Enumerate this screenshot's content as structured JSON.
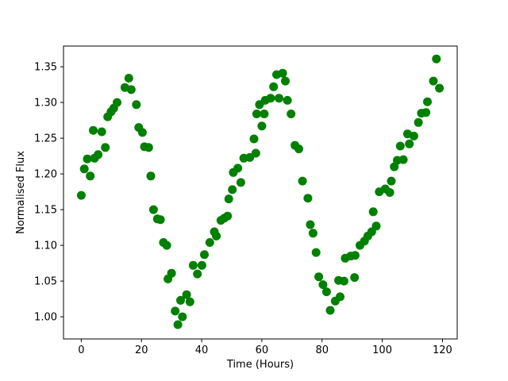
{
  "figure": {
    "background": "#ffffff",
    "spine_color": "#000000",
    "text_color": "#000000"
  },
  "chart_data": {
    "type": "scatter",
    "title": "",
    "xlabel": "Time (Hours)",
    "ylabel": "Normalised Flux",
    "xlim": [
      -5.9,
      124.9
    ],
    "ylim": [
      0.969,
      1.379
    ],
    "grid": false,
    "legend": null,
    "marker": {
      "color": "#008000",
      "radius": 5.5
    },
    "xticks": {
      "values": [
        0,
        20,
        40,
        60,
        80,
        100,
        120
      ],
      "labels": [
        "0",
        "20",
        "40",
        "60",
        "80",
        "100",
        "120"
      ]
    },
    "yticks": {
      "values": [
        1.0,
        1.05,
        1.1,
        1.15,
        1.2,
        1.25,
        1.3,
        1.35
      ],
      "labels": [
        "1.00",
        "1.05",
        "1.10",
        "1.15",
        "1.20",
        "1.25",
        "1.30",
        "1.35"
      ]
    },
    "x": [
      0,
      1,
      2,
      3,
      4,
      4.4,
      5.6,
      6.8,
      8,
      8.8,
      9.9,
      10.8,
      11.9,
      14.5,
      15.8,
      16.6,
      18.3,
      19.1,
      20.3,
      21,
      22.4,
      23.1,
      24,
      25.3,
      26.3,
      27.3,
      28.4,
      28.8,
      30,
      31.2,
      32.1,
      33,
      33.6,
      35,
      36.1,
      37.2,
      38.6,
      40.1,
      40.9,
      42.7,
      44.2,
      44.9,
      46.4,
      47.5,
      48.6,
      49,
      50.2,
      50.5,
      52,
      53,
      54,
      56,
      57.4,
      58,
      58.3,
      59.2,
      60,
      60.8,
      61.1,
      62.9,
      63.9,
      64.9,
      65.7,
      66.9,
      67.8,
      68.5,
      69.7,
      71,
      72.3,
      73.5,
      75.3,
      76.1,
      77,
      78,
      78.9,
      80.3,
      81.5,
      82.7,
      84.4,
      85.5,
      86,
      87.3,
      87.7,
      89.5,
      90.8,
      91,
      92.6,
      94.1,
      95.2,
      96.5,
      97,
      98,
      99,
      101,
      102.5,
      103,
      104,
      105,
      106,
      107,
      108.4,
      109,
      110.5,
      112,
      113,
      114.5,
      115,
      117,
      118,
      119
    ],
    "y": [
      1.17,
      1.207,
      1.221,
      1.197,
      1.261,
      1.222,
      1.227,
      1.259,
      1.237,
      1.28,
      1.287,
      1.292,
      1.3,
      1.321,
      1.334,
      1.318,
      1.297,
      1.265,
      1.258,
      1.238,
      1.237,
      1.197,
      1.15,
      1.137,
      1.136,
      1.104,
      1.1,
      1.053,
      1.061,
      1.008,
      0.989,
      1.023,
      1.0,
      1.031,
      1.021,
      1.072,
      1.06,
      1.072,
      1.087,
      1.104,
      1.119,
      1.113,
      1.135,
      1.138,
      1.141,
      1.165,
      1.178,
      1.202,
      1.208,
      1.188,
      1.222,
      1.223,
      1.249,
      1.229,
      1.284,
      1.297,
      1.267,
      1.284,
      1.303,
      1.306,
      1.322,
      1.339,
      1.306,
      1.341,
      1.33,
      1.303,
      1.284,
      1.24,
      1.235,
      1.19,
      1.166,
      1.129,
      1.117,
      1.09,
      1.056,
      1.045,
      1.035,
      1.009,
      1.022,
      1.051,
      1.028,
      1.05,
      1.082,
      1.085,
      1.055,
      1.086,
      1.1,
      1.106,
      1.113,
      1.119,
      1.147,
      1.127,
      1.175,
      1.179,
      1.174,
      1.19,
      1.21,
      1.219,
      1.239,
      1.22,
      1.256,
      1.242,
      1.253,
      1.272,
      1.285,
      1.286,
      1.301,
      1.33,
      1.361,
      1.32
    ]
  }
}
